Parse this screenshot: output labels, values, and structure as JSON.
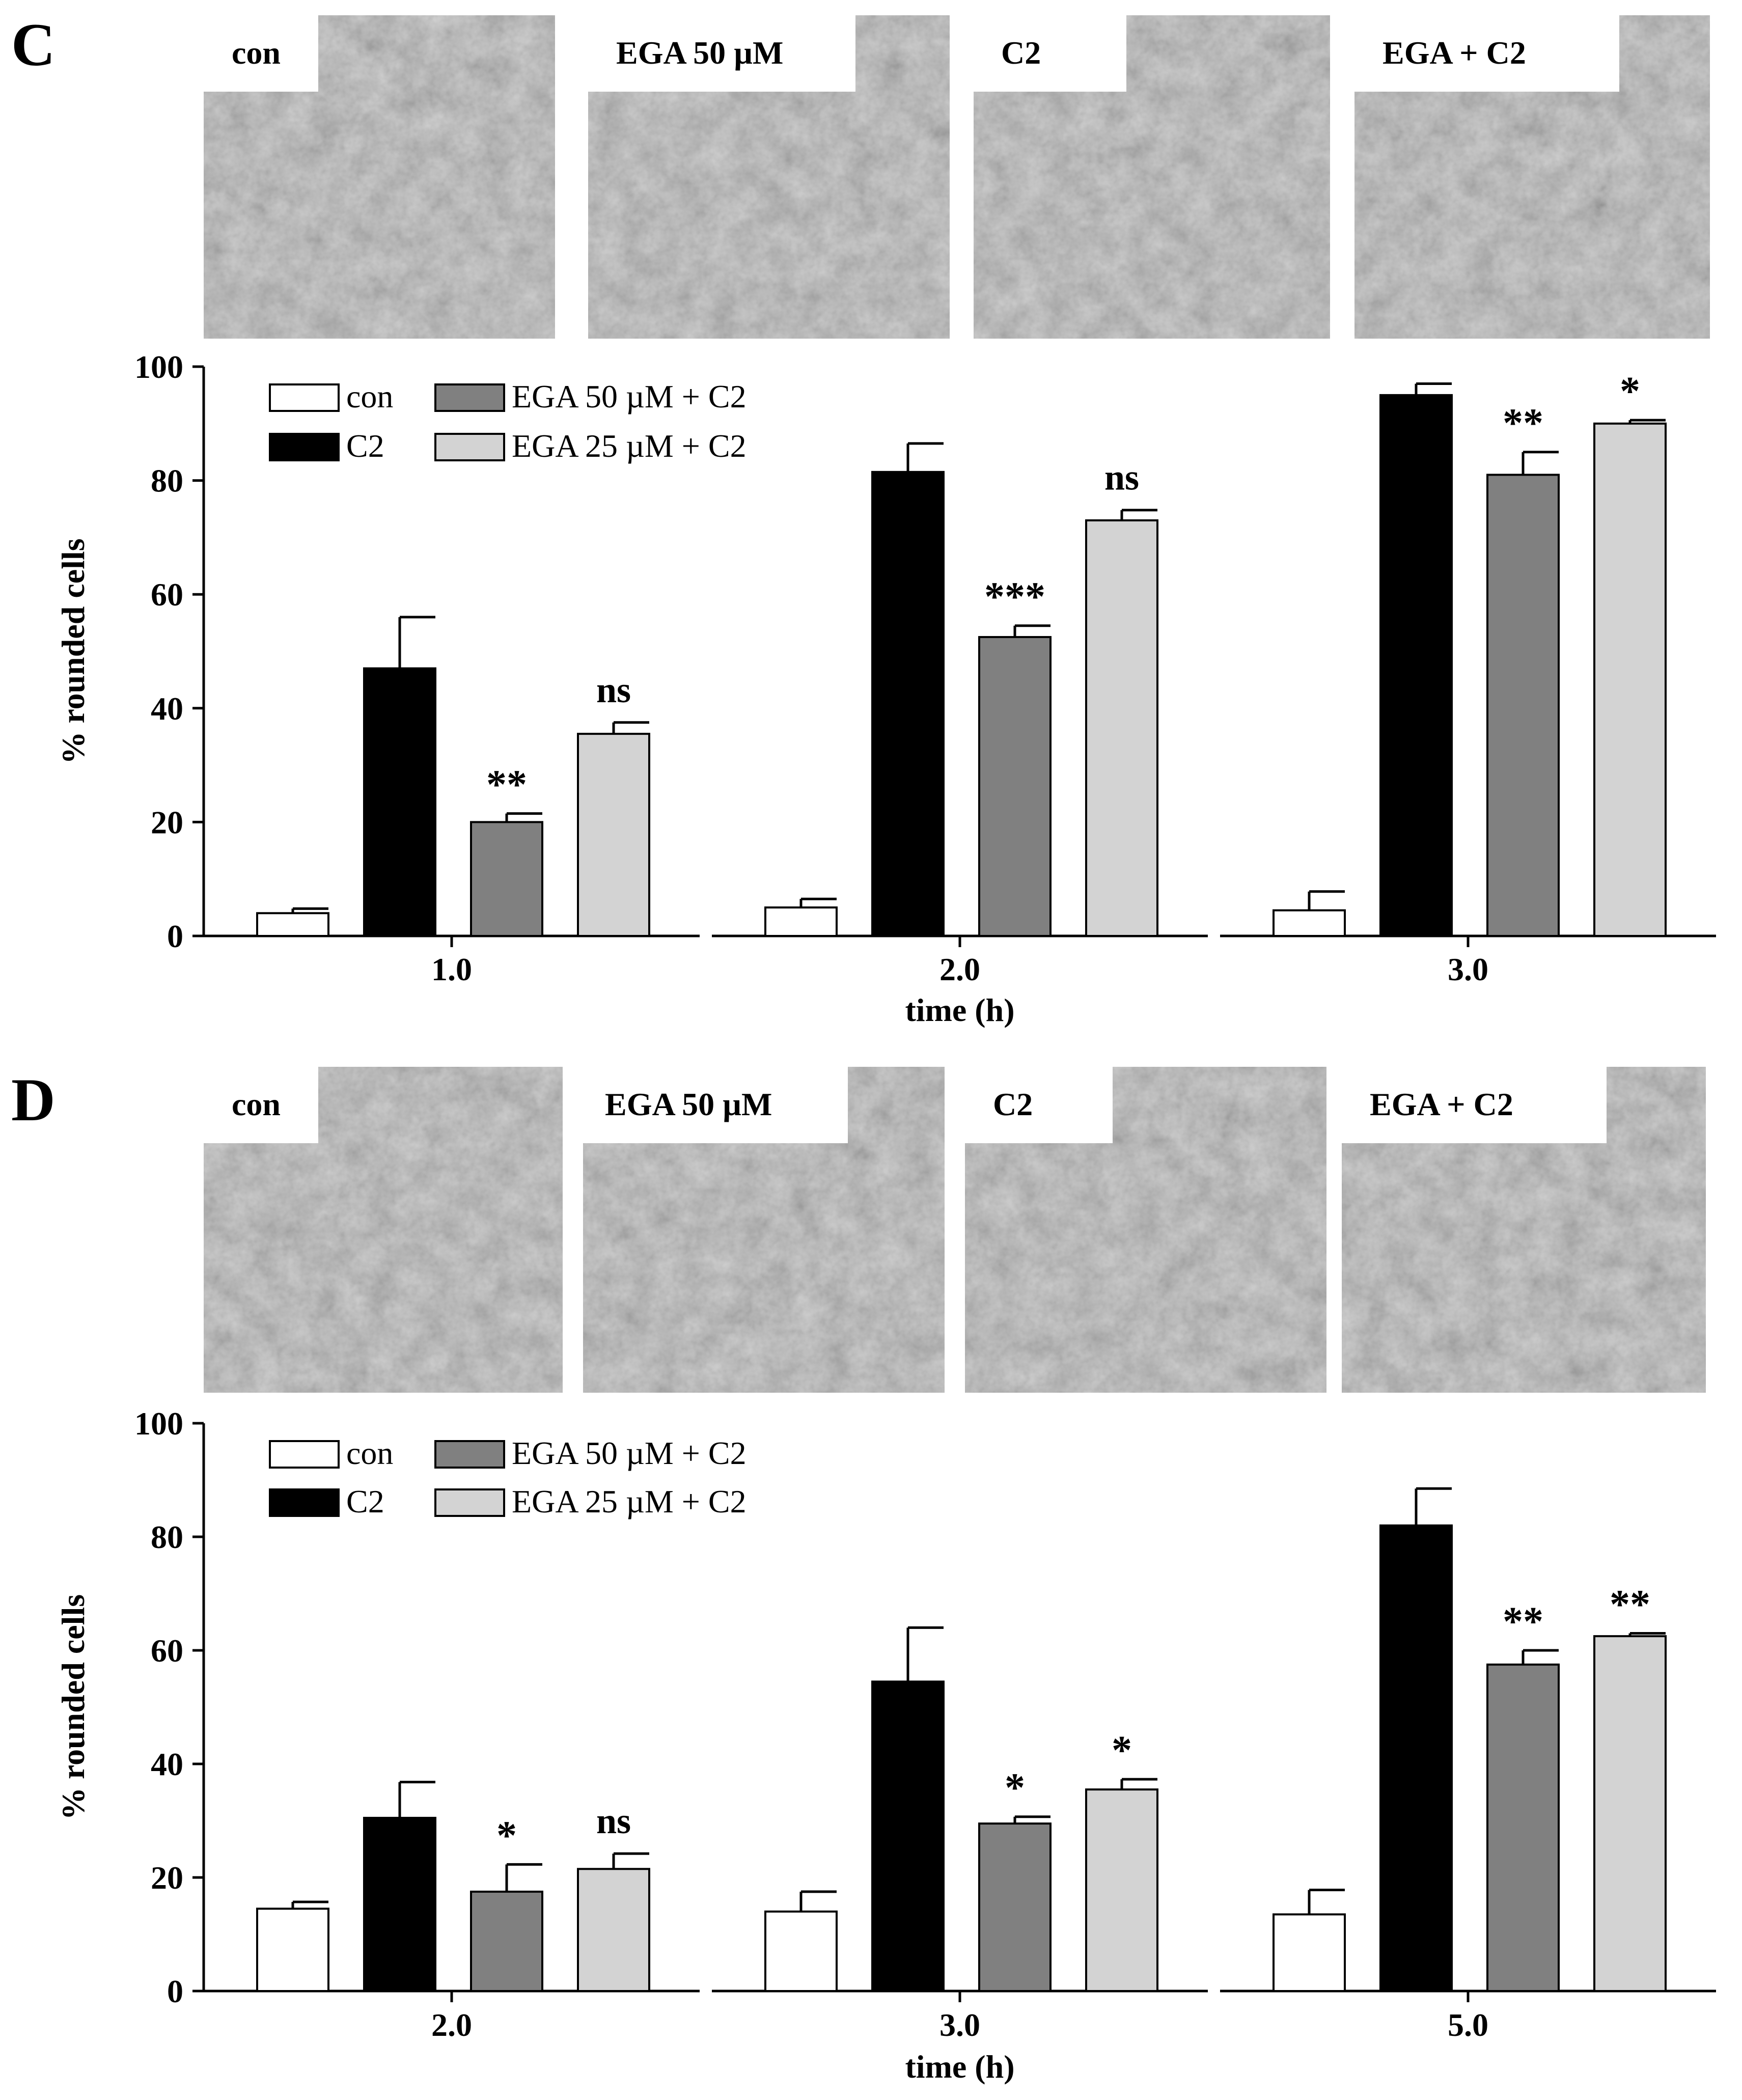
{
  "panels": [
    {
      "letter": "C",
      "micrographs": [
        {
          "label": "con",
          "texture": "flat-epithelial"
        },
        {
          "label": "EGA 50 µM",
          "texture": "flat-epithelial"
        },
        {
          "label": "C2",
          "texture": "rounded-cells"
        },
        {
          "label": "EGA + C2",
          "texture": "mixed"
        }
      ]
    },
    {
      "letter": "D",
      "micrographs": [
        {
          "label": "con",
          "texture": "spindle"
        },
        {
          "label": "EGA 50 µM",
          "texture": "spindle"
        },
        {
          "label": "C2",
          "texture": "rounded-spindle"
        },
        {
          "label": "EGA + C2",
          "texture": "rounded-spindle"
        }
      ]
    }
  ],
  "colors": {
    "con": "#ffffff",
    "C2": "#000000",
    "EGA 50 µM + C2": "#808080",
    "EGA 25 µM + C2": "#d3d3d3",
    "micrograph_bg": "#b5b5b5"
  },
  "chart_data": [
    {
      "type": "bar",
      "title": "",
      "xlabel": "time (h)",
      "ylabel": "% rounded cells",
      "ylim": [
        0,
        100
      ],
      "yticks": [
        0,
        20,
        40,
        60,
        80,
        100
      ],
      "categories": [
        "1.0",
        "2.0",
        "3.0"
      ],
      "legend_position": "top-left",
      "series": [
        {
          "name": "con",
          "values": [
            4,
            5,
            4.5
          ],
          "errors": [
            0.8,
            1.5,
            3.3
          ],
          "significance": [
            "",
            "",
            ""
          ]
        },
        {
          "name": "C2",
          "values": [
            47,
            81.5,
            95
          ],
          "errors": [
            9,
            5,
            2
          ],
          "significance": [
            "",
            "",
            ""
          ]
        },
        {
          "name": "EGA 50 µM + C2",
          "values": [
            20,
            52.5,
            81
          ],
          "errors": [
            1.5,
            2,
            4
          ],
          "significance": [
            "**",
            "***",
            "**"
          ]
        },
        {
          "name": "EGA 25 µM + C2",
          "values": [
            35.5,
            73,
            90
          ],
          "errors": [
            2,
            1.8,
            0.6
          ],
          "significance": [
            "ns",
            "ns",
            "*"
          ]
        }
      ]
    },
    {
      "type": "bar",
      "title": "",
      "xlabel": "time (h)",
      "ylabel": "% rounded cells",
      "ylim": [
        0,
        100
      ],
      "yticks": [
        0,
        20,
        40,
        60,
        80,
        100
      ],
      "categories": [
        "2.0",
        "3.0",
        "5.0"
      ],
      "legend_position": "top-left",
      "series": [
        {
          "name": "con",
          "values": [
            14.5,
            14,
            13.5
          ],
          "errors": [
            1.2,
            3.5,
            4.3
          ],
          "significance": [
            "",
            "",
            ""
          ]
        },
        {
          "name": "C2",
          "values": [
            30.5,
            54.5,
            82
          ],
          "errors": [
            6.3,
            9.5,
            6.5
          ],
          "significance": [
            "",
            "",
            ""
          ]
        },
        {
          "name": "EGA 50 µM + C2",
          "values": [
            17.5,
            29.5,
            57.5
          ],
          "errors": [
            4.8,
            1.2,
            2.5
          ],
          "significance": [
            "*",
            "*",
            "**"
          ]
        },
        {
          "name": "EGA 25 µM + C2",
          "values": [
            21.5,
            35.5,
            62.5
          ],
          "errors": [
            2.7,
            1.8,
            0.5
          ],
          "significance": [
            "ns",
            "*",
            "**"
          ]
        }
      ]
    }
  ]
}
